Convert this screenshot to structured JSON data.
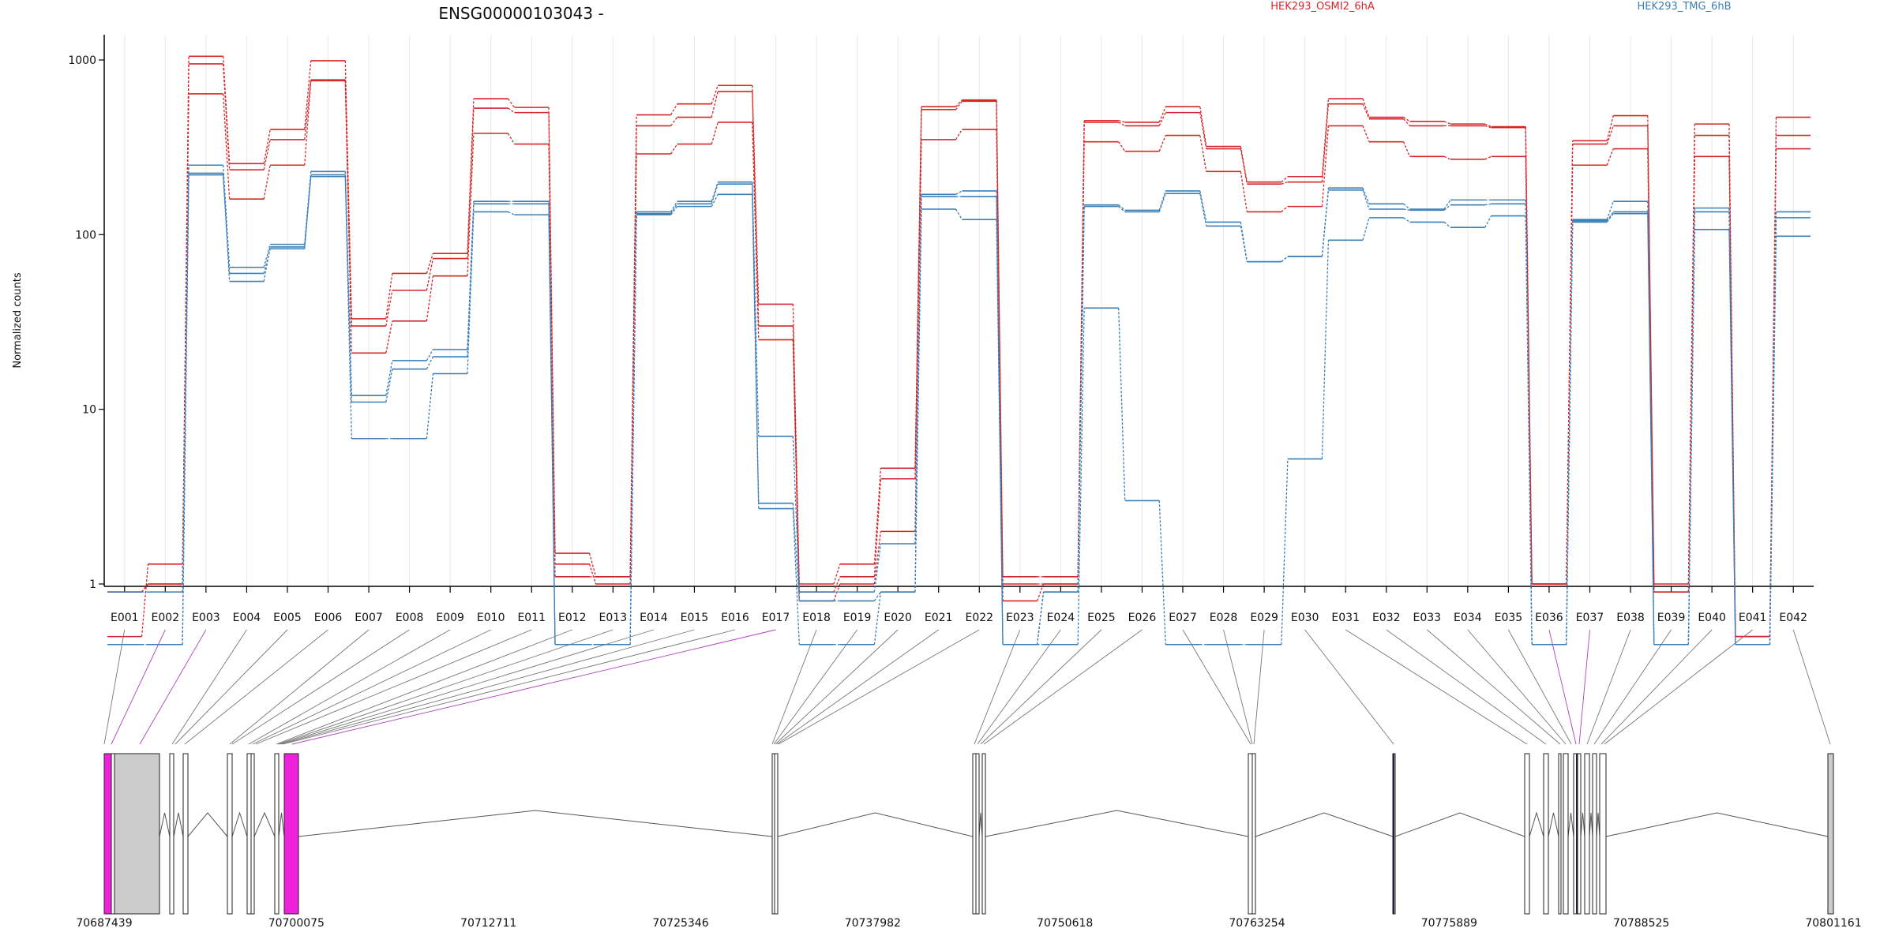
{
  "colors": {
    "group_a": "#d62728",
    "group_b": "#3a7fb8",
    "highlight_exon": "#ee22dd",
    "highlight_line": "#b040c0",
    "normal_line": "#777777",
    "grid": "#e8e8e8",
    "box_fill": "#cccccc"
  },
  "chart_data": {
    "type": "line",
    "title": "ENSG00000103043 -",
    "ylabel": "Normalized counts",
    "y_scale": "log",
    "y_ticks": [
      1,
      10,
      100,
      1000
    ],
    "y_tick_labels": [
      "1",
      "10",
      "100",
      "1000"
    ],
    "legend": [
      {
        "name": "HEK293_OSMI2_6hA",
        "color": "#d62728"
      },
      {
        "name": "HEK293_TMG_6hB",
        "color": "#3a7fb8"
      }
    ],
    "categories": [
      "E001",
      "E002",
      "E003",
      "E004",
      "E005",
      "E006",
      "E007",
      "E008",
      "E009",
      "E010",
      "E011",
      "E012",
      "E013",
      "E014",
      "E015",
      "E016",
      "E017",
      "E018",
      "E019",
      "E020",
      "E021",
      "E022",
      "E023",
      "E024",
      "E025",
      "E026",
      "E027",
      "E028",
      "E029",
      "E030",
      "E031",
      "E032",
      "E033",
      "E034",
      "E035",
      "E036",
      "E037",
      "E038",
      "E039",
      "E040",
      "E041",
      "E042"
    ],
    "series": [
      {
        "group": "a",
        "values": [
          0.9,
          1.0,
          1050,
          255,
          400,
          990,
          33,
          60,
          78,
          600,
          535,
          1.5,
          1.1,
          485,
          560,
          715,
          40,
          1.0,
          1.3,
          4.6,
          540,
          590,
          1.1,
          1.1,
          450,
          440,
          540,
          320,
          200,
          215,
          600,
          470,
          445,
          430,
          415,
          1.0,
          345,
          480,
          1.0,
          430,
          0.5,
          470
        ]
      },
      {
        "group": "a",
        "values": [
          0.9,
          1.0,
          950,
          235,
          350,
          770,
          30,
          48,
          73,
          530,
          500,
          1.3,
          1.0,
          420,
          470,
          660,
          30,
          0.9,
          1.1,
          4.0,
          520,
          580,
          1.0,
          1.0,
          440,
          420,
          500,
          310,
          195,
          200,
          560,
          460,
          420,
          420,
          410,
          1.0,
          330,
          420,
          0.9,
          370,
          0.5,
          370
        ]
      },
      {
        "group": "a",
        "values": [
          0.5,
          1.3,
          640,
          160,
          250,
          760,
          21,
          32,
          58,
          380,
          330,
          1.1,
          1.1,
          290,
          330,
          440,
          25,
          0.8,
          1.0,
          2.0,
          350,
          400,
          0.8,
          1.0,
          340,
          300,
          370,
          230,
          135,
          145,
          420,
          340,
          280,
          270,
          280,
          1.0,
          250,
          310,
          0.9,
          280,
          0.5,
          310
        ]
      },
      {
        "group": "b",
        "values": [
          0.9,
          0.9,
          250,
          65,
          88,
          230,
          12,
          19,
          22,
          155,
          155,
          0.45,
          0.45,
          135,
          155,
          200,
          7,
          0.9,
          0.9,
          1.7,
          170,
          178,
          0.45,
          0.9,
          148,
          138,
          178,
          118,
          70,
          75,
          185,
          150,
          140,
          158,
          158,
          0.45,
          122,
          155,
          0.45,
          142,
          0.45,
          135
        ]
      },
      {
        "group": "b",
        "values": [
          0.45,
          0.45,
          225,
          60,
          83,
          220,
          11,
          17,
          20,
          150,
          150,
          0.45,
          0.45,
          132,
          150,
          195,
          2.9,
          0.8,
          0.8,
          0.9,
          165,
          165,
          0.45,
          0.9,
          145,
          135,
          172,
          112,
          70,
          75,
          180,
          140,
          138,
          148,
          150,
          0.45,
          120,
          135,
          0.45,
          135,
          0.45,
          125
        ]
      },
      {
        "group": "b",
        "values": [
          0.45,
          0.45,
          220,
          54,
          85,
          215,
          6.8,
          6.8,
          16,
          135,
          130,
          0.45,
          0.45,
          130,
          145,
          170,
          2.7,
          0.45,
          0.45,
          0.9,
          140,
          122,
          0.45,
          0.45,
          38,
          3.0,
          0.45,
          0.45,
          0.45,
          5.2,
          93,
          125,
          118,
          110,
          128,
          0.45,
          118,
          132,
          0.45,
          107,
          0.45,
          98
        ]
      }
    ],
    "genome_coord_ticks": [
      "70687439",
      "70700075",
      "70712711",
      "70725346",
      "70737982",
      "70750618",
      "70763254",
      "70775889",
      "70788525",
      "70801161"
    ]
  }
}
